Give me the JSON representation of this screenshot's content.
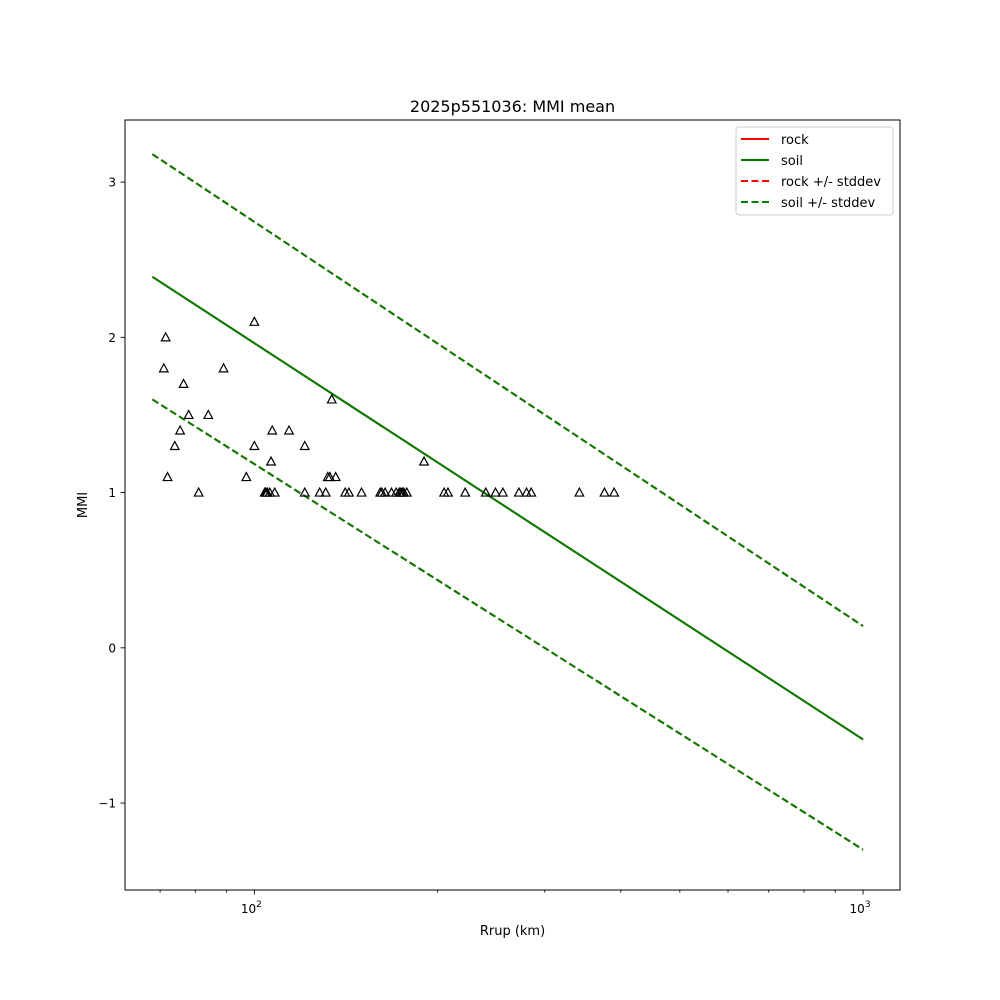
{
  "chart_data": {
    "type": "scatter",
    "title": "2025p551036: MMI mean",
    "xlabel": "Rrup (km)",
    "ylabel": "MMI",
    "xscale": "log",
    "xlim": [
      61.3,
      1150
    ],
    "ylim": [
      -1.56,
      3.4
    ],
    "x_ticks": [
      {
        "value": 100,
        "base": "10",
        "exp": "2"
      },
      {
        "value": 1000,
        "base": "10",
        "exp": "3"
      }
    ],
    "y_ticks": [
      {
        "value": -1,
        "label": "−1"
      },
      {
        "value": 0,
        "label": "0"
      },
      {
        "value": 1,
        "label": "1"
      },
      {
        "value": 2,
        "label": "2"
      },
      {
        "value": 3,
        "label": "3"
      }
    ],
    "grid": false,
    "legend_position": "top-right",
    "series": [
      {
        "name": "rock",
        "style": "solid",
        "color": "#ff0000",
        "x": [
          68,
          1000
        ],
        "y": [
          2.39,
          -0.59
        ]
      },
      {
        "name": "soil",
        "style": "solid",
        "color": "#008000",
        "x": [
          68,
          1000
        ],
        "y": [
          2.39,
          -0.59
        ]
      },
      {
        "name": "rock +/- stddev",
        "style": "dashed",
        "color": "#ff0000",
        "x": [
          68,
          1000
        ],
        "y": [
          3.18,
          0.14
        ],
        "y_lower": [
          1.6,
          -1.3
        ]
      },
      {
        "name": "soil +/- stddev",
        "style": "dashed",
        "color": "#008000",
        "x": [
          68,
          1000
        ],
        "y": [
          3.18,
          0.14
        ],
        "y_lower": [
          1.6,
          -1.3
        ]
      }
    ],
    "observations": {
      "marker": "triangle",
      "points": [
        [
          71,
          1.8
        ],
        [
          71.5,
          2.0
        ],
        [
          72,
          1.1
        ],
        [
          74,
          1.3
        ],
        [
          75.5,
          1.4
        ],
        [
          76.5,
          1.7
        ],
        [
          78,
          1.5
        ],
        [
          81,
          1.0
        ],
        [
          84,
          1.5
        ],
        [
          89,
          1.8
        ],
        [
          97,
          1.1
        ],
        [
          100,
          2.1
        ],
        [
          100,
          1.3
        ],
        [
          104,
          1.0
        ],
        [
          104.5,
          1.0
        ],
        [
          105,
          1.0
        ],
        [
          106,
          1.0
        ],
        [
          106.5,
          1.2
        ],
        [
          107,
          1.4
        ],
        [
          108,
          1.0
        ],
        [
          114,
          1.4
        ],
        [
          121,
          1.0
        ],
        [
          121,
          1.3
        ],
        [
          128,
          1.0
        ],
        [
          131,
          1.0
        ],
        [
          132,
          1.1
        ],
        [
          133,
          1.1
        ],
        [
          134,
          1.6
        ],
        [
          136,
          1.1
        ],
        [
          141,
          1.0
        ],
        [
          143,
          1.0
        ],
        [
          150,
          1.0
        ],
        [
          161,
          1.0
        ],
        [
          162,
          1.0
        ],
        [
          164,
          1.0
        ],
        [
          168,
          1.0
        ],
        [
          171,
          1.0
        ],
        [
          173,
          1.0
        ],
        [
          174,
          1.0
        ],
        [
          175,
          1.0
        ],
        [
          176,
          1.0
        ],
        [
          178,
          1.0
        ],
        [
          190,
          1.2
        ],
        [
          205,
          1.0
        ],
        [
          208,
          1.0
        ],
        [
          222,
          1.0
        ],
        [
          240,
          1.0
        ],
        [
          249,
          1.0
        ],
        [
          256,
          1.0
        ],
        [
          272,
          1.0
        ],
        [
          280,
          1.0
        ],
        [
          285,
          1.0
        ],
        [
          342,
          1.0
        ],
        [
          376,
          1.0
        ],
        [
          390,
          1.0
        ]
      ]
    }
  }
}
